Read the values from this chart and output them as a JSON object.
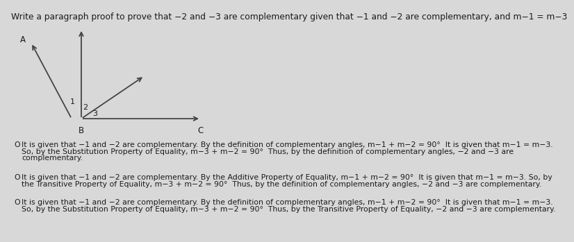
{
  "title": "Write a paragraph proof to prove that −2 and −3 are complementary given that −1 and −2 are complementary, and m−1 = m−3",
  "bg_color": "#d8d8d8",
  "diagram_bg": "#e8e6e6",
  "option1_line1": "It is given that −1 and −2 are complementary. By the definition of complementary angles, m−1 + m−2 = 90°  It is given that m−1 = m−3.",
  "option1_line2": "So, by the Substitution Property of Equality, m−3 + m−2 = 90°  Thus, by the definition of complementary angles, −2 and −3 are",
  "option1_line3": "complementary.",
  "option2_line1": "It is given that −1 and −2 are complementary. By the Additive Property of Equality, m−1 + m−2 = 90°  It is given that m−1 = m−3. So, by",
  "option2_line2": "the Transitive Property of Equality, m−3 + m−2 = 90°  Thus, by the definition of complementary angles, −2 and −3 are complementary.",
  "option3_line1": "It is given that −1 and −2 are complementary. By the definition of complementary angles, m−1 + m−2 = 90°  It is given that m−1 = m−3.",
  "option3_line2": "So, by the Substitution Property of Equality, m−3 + m−2 = 90°  Thus, by the Transitive Property of Equality, −2 and −3 are complementary.",
  "text_color": "#1a1a1a",
  "title_fontsize": 8.8,
  "body_fontsize": 7.8,
  "arrow_color": "#444444",
  "label_fontsize": 8.5
}
